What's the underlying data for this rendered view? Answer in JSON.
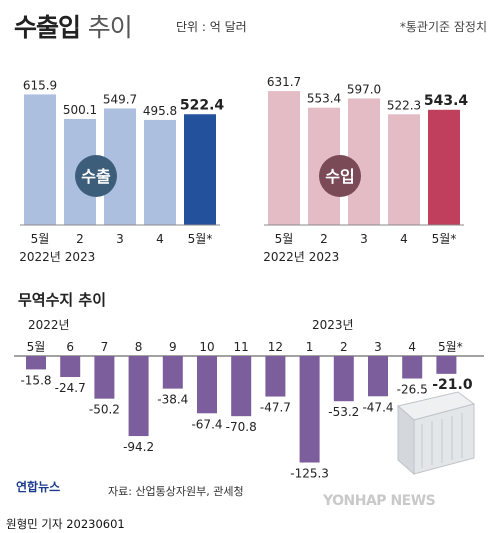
{
  "header": {
    "title_bold": "수출입",
    "title_rest": "추이",
    "unit": "단위 : 억 달러",
    "note": "*통관기준 잠정치"
  },
  "export_chart": {
    "label": "수출",
    "categories": [
      "5월",
      "2",
      "3",
      "4",
      "5월*"
    ],
    "years": [
      "2022년",
      "2023",
      "",
      "",
      ""
    ],
    "values": [
      615.9,
      500.1,
      549.7,
      495.8,
      522.4
    ],
    "value_labels": [
      "615.9",
      "500.1",
      "549.7",
      "495.8",
      "522.4"
    ],
    "colors": {
      "bar": "#adbfdf",
      "highlight": "#24519c",
      "badge": "#3d5e7a"
    }
  },
  "import_chart": {
    "label": "수입",
    "categories": [
      "5월",
      "2",
      "3",
      "4",
      "5월*"
    ],
    "years": [
      "2022년",
      "2023",
      "",
      "",
      ""
    ],
    "values": [
      631.7,
      553.4,
      597.0,
      522.3,
      543.4
    ],
    "value_labels": [
      "631.7",
      "553.4",
      "597.0",
      "522.3",
      "543.4"
    ],
    "colors": {
      "bar": "#e4bcc5",
      "highlight": "#c03f5d",
      "badge": "#7a4a56"
    }
  },
  "balance_chart": {
    "title": "무역수지 추이",
    "year_labels": [
      "2022년",
      "2023년"
    ],
    "categories": [
      "5월",
      "6",
      "7",
      "8",
      "9",
      "10",
      "11",
      "12",
      "1",
      "2",
      "3",
      "4",
      "5월*"
    ],
    "values": [
      -15.8,
      -24.7,
      -50.2,
      -94.2,
      -38.4,
      -67.4,
      -70.8,
      -47.7,
      -125.3,
      -53.2,
      -47.4,
      -26.5,
      -21.0
    ],
    "value_labels": [
      "-15.8",
      "-24.7",
      "-50.2",
      "-94.2",
      "-38.4",
      "-67.4",
      "-70.8",
      "-47.7",
      "-125.3",
      "-53.2",
      "-47.4",
      "-26.5",
      "-21.0"
    ],
    "colors": {
      "bar": "#7d5e9c"
    }
  },
  "chart_data": [
    {
      "type": "bar",
      "title": "수출",
      "categories": [
        "2022년 5월",
        "2023 2",
        "3",
        "4",
        "5월*"
      ],
      "values": [
        615.9,
        500.1,
        549.7,
        495.8,
        522.4
      ],
      "ylabel": "억 달러"
    },
    {
      "type": "bar",
      "title": "수입",
      "categories": [
        "2022년 5월",
        "2023 2",
        "3",
        "4",
        "5월*"
      ],
      "values": [
        631.7,
        553.4,
        597.0,
        522.3,
        543.4
      ],
      "ylabel": "억 달러"
    },
    {
      "type": "bar",
      "title": "무역수지 추이",
      "categories": [
        "2022년 5월",
        "6",
        "7",
        "8",
        "9",
        "10",
        "11",
        "12",
        "2023년 1",
        "2",
        "3",
        "4",
        "5월*"
      ],
      "values": [
        -15.8,
        -24.7,
        -50.2,
        -94.2,
        -38.4,
        -67.4,
        -70.8,
        -47.7,
        -125.3,
        -53.2,
        -47.4,
        -26.5,
        -21.0
      ],
      "ylabel": "억 달러"
    }
  ],
  "footer": {
    "source": "자료: 산업통상자원부, 관세청",
    "reporter": "원형민 기자  20230601",
    "logo_left": "연합뉴스",
    "logo_right": "YONHAP NEWS"
  }
}
